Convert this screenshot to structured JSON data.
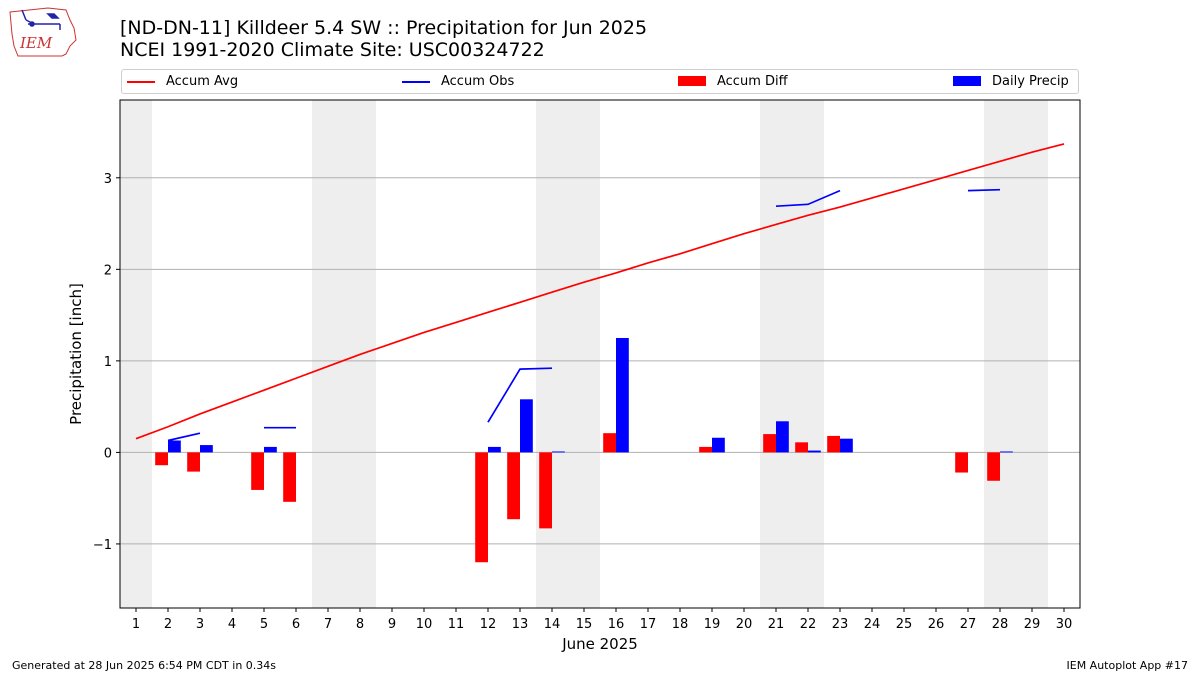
{
  "header": {
    "title_line1": "[ND-DN-11] Killdeer 5.4 SW :: Precipitation for Jun 2025",
    "title_line2": "NCEI 1991-2020 Climate Site: USC00324722",
    "logo_text": "IEM"
  },
  "legend": [
    {
      "label": "Accum Avg",
      "color": "#ff0000",
      "kind": "line"
    },
    {
      "label": "Accum Obs",
      "color": "#0000ff",
      "kind": "line"
    },
    {
      "label": "Accum Diff",
      "color": "#ff0000",
      "kind": "box"
    },
    {
      "label": "Daily Precip",
      "color": "#0000ff",
      "kind": "box"
    }
  ],
  "chart_data": {
    "type": "bar",
    "xlabel": "June 2025",
    "ylabel": "Precipitation [inch]",
    "ylim": [
      -1.7,
      3.85
    ],
    "yticks": [
      -1,
      0,
      1,
      2,
      3
    ],
    "ytick_labels": [
      "−1",
      "0",
      "1",
      "2",
      "3"
    ],
    "x": [
      1,
      2,
      3,
      4,
      5,
      6,
      7,
      8,
      9,
      10,
      11,
      12,
      13,
      14,
      15,
      16,
      17,
      18,
      19,
      20,
      21,
      22,
      23,
      24,
      25,
      26,
      27,
      28,
      29,
      30
    ],
    "xlim": [
      0.5,
      30.5
    ],
    "grid": "y",
    "weekend_shading": [
      [
        0.5,
        1.5
      ],
      [
        6.5,
        8.5
      ],
      [
        13.5,
        15.5
      ],
      [
        20.5,
        22.5
      ],
      [
        27.5,
        29.5
      ]
    ],
    "series": [
      {
        "name": "Accum Avg",
        "kind": "line",
        "color": "#ff0000",
        "values": [
          0.15,
          0.28,
          0.42,
          0.55,
          0.68,
          0.81,
          0.94,
          1.07,
          1.19,
          1.31,
          1.42,
          1.53,
          1.64,
          1.75,
          1.86,
          1.96,
          2.07,
          2.17,
          2.28,
          2.39,
          2.49,
          2.59,
          2.68,
          2.78,
          2.88,
          2.98,
          3.08,
          3.18,
          3.28,
          3.37
        ]
      },
      {
        "name": "Accum Obs",
        "kind": "line",
        "color": "#0000ff",
        "values": [
          null,
          0.13,
          0.21,
          null,
          0.27,
          0.27,
          null,
          null,
          null,
          null,
          null,
          0.33,
          0.91,
          0.92,
          null,
          null,
          null,
          null,
          null,
          null,
          2.69,
          2.71,
          2.86,
          null,
          null,
          null,
          2.86,
          2.87,
          null,
          null
        ]
      },
      {
        "name": "Accum Diff",
        "kind": "bar",
        "color": "#ff0000",
        "values": [
          null,
          -0.14,
          -0.21,
          null,
          -0.41,
          -0.54,
          null,
          null,
          null,
          null,
          null,
          -1.2,
          -0.73,
          -0.83,
          null,
          0.21,
          null,
          null,
          0.06,
          null,
          0.2,
          0.11,
          0.18,
          null,
          null,
          null,
          -0.22,
          -0.31,
          null,
          null
        ]
      },
      {
        "name": "Daily Precip",
        "kind": "bar",
        "color": "#0000ff",
        "values": [
          null,
          0.13,
          0.08,
          null,
          0.06,
          null,
          null,
          null,
          null,
          null,
          null,
          0.06,
          0.58,
          0.01,
          null,
          1.25,
          null,
          null,
          0.16,
          null,
          0.34,
          0.02,
          0.15,
          null,
          null,
          null,
          null,
          0.01,
          null,
          null
        ]
      }
    ]
  },
  "footer": {
    "left": "Generated at 28 Jun 2025 6:54 PM CDT in 0.34s",
    "right": "IEM Autoplot App #17"
  }
}
